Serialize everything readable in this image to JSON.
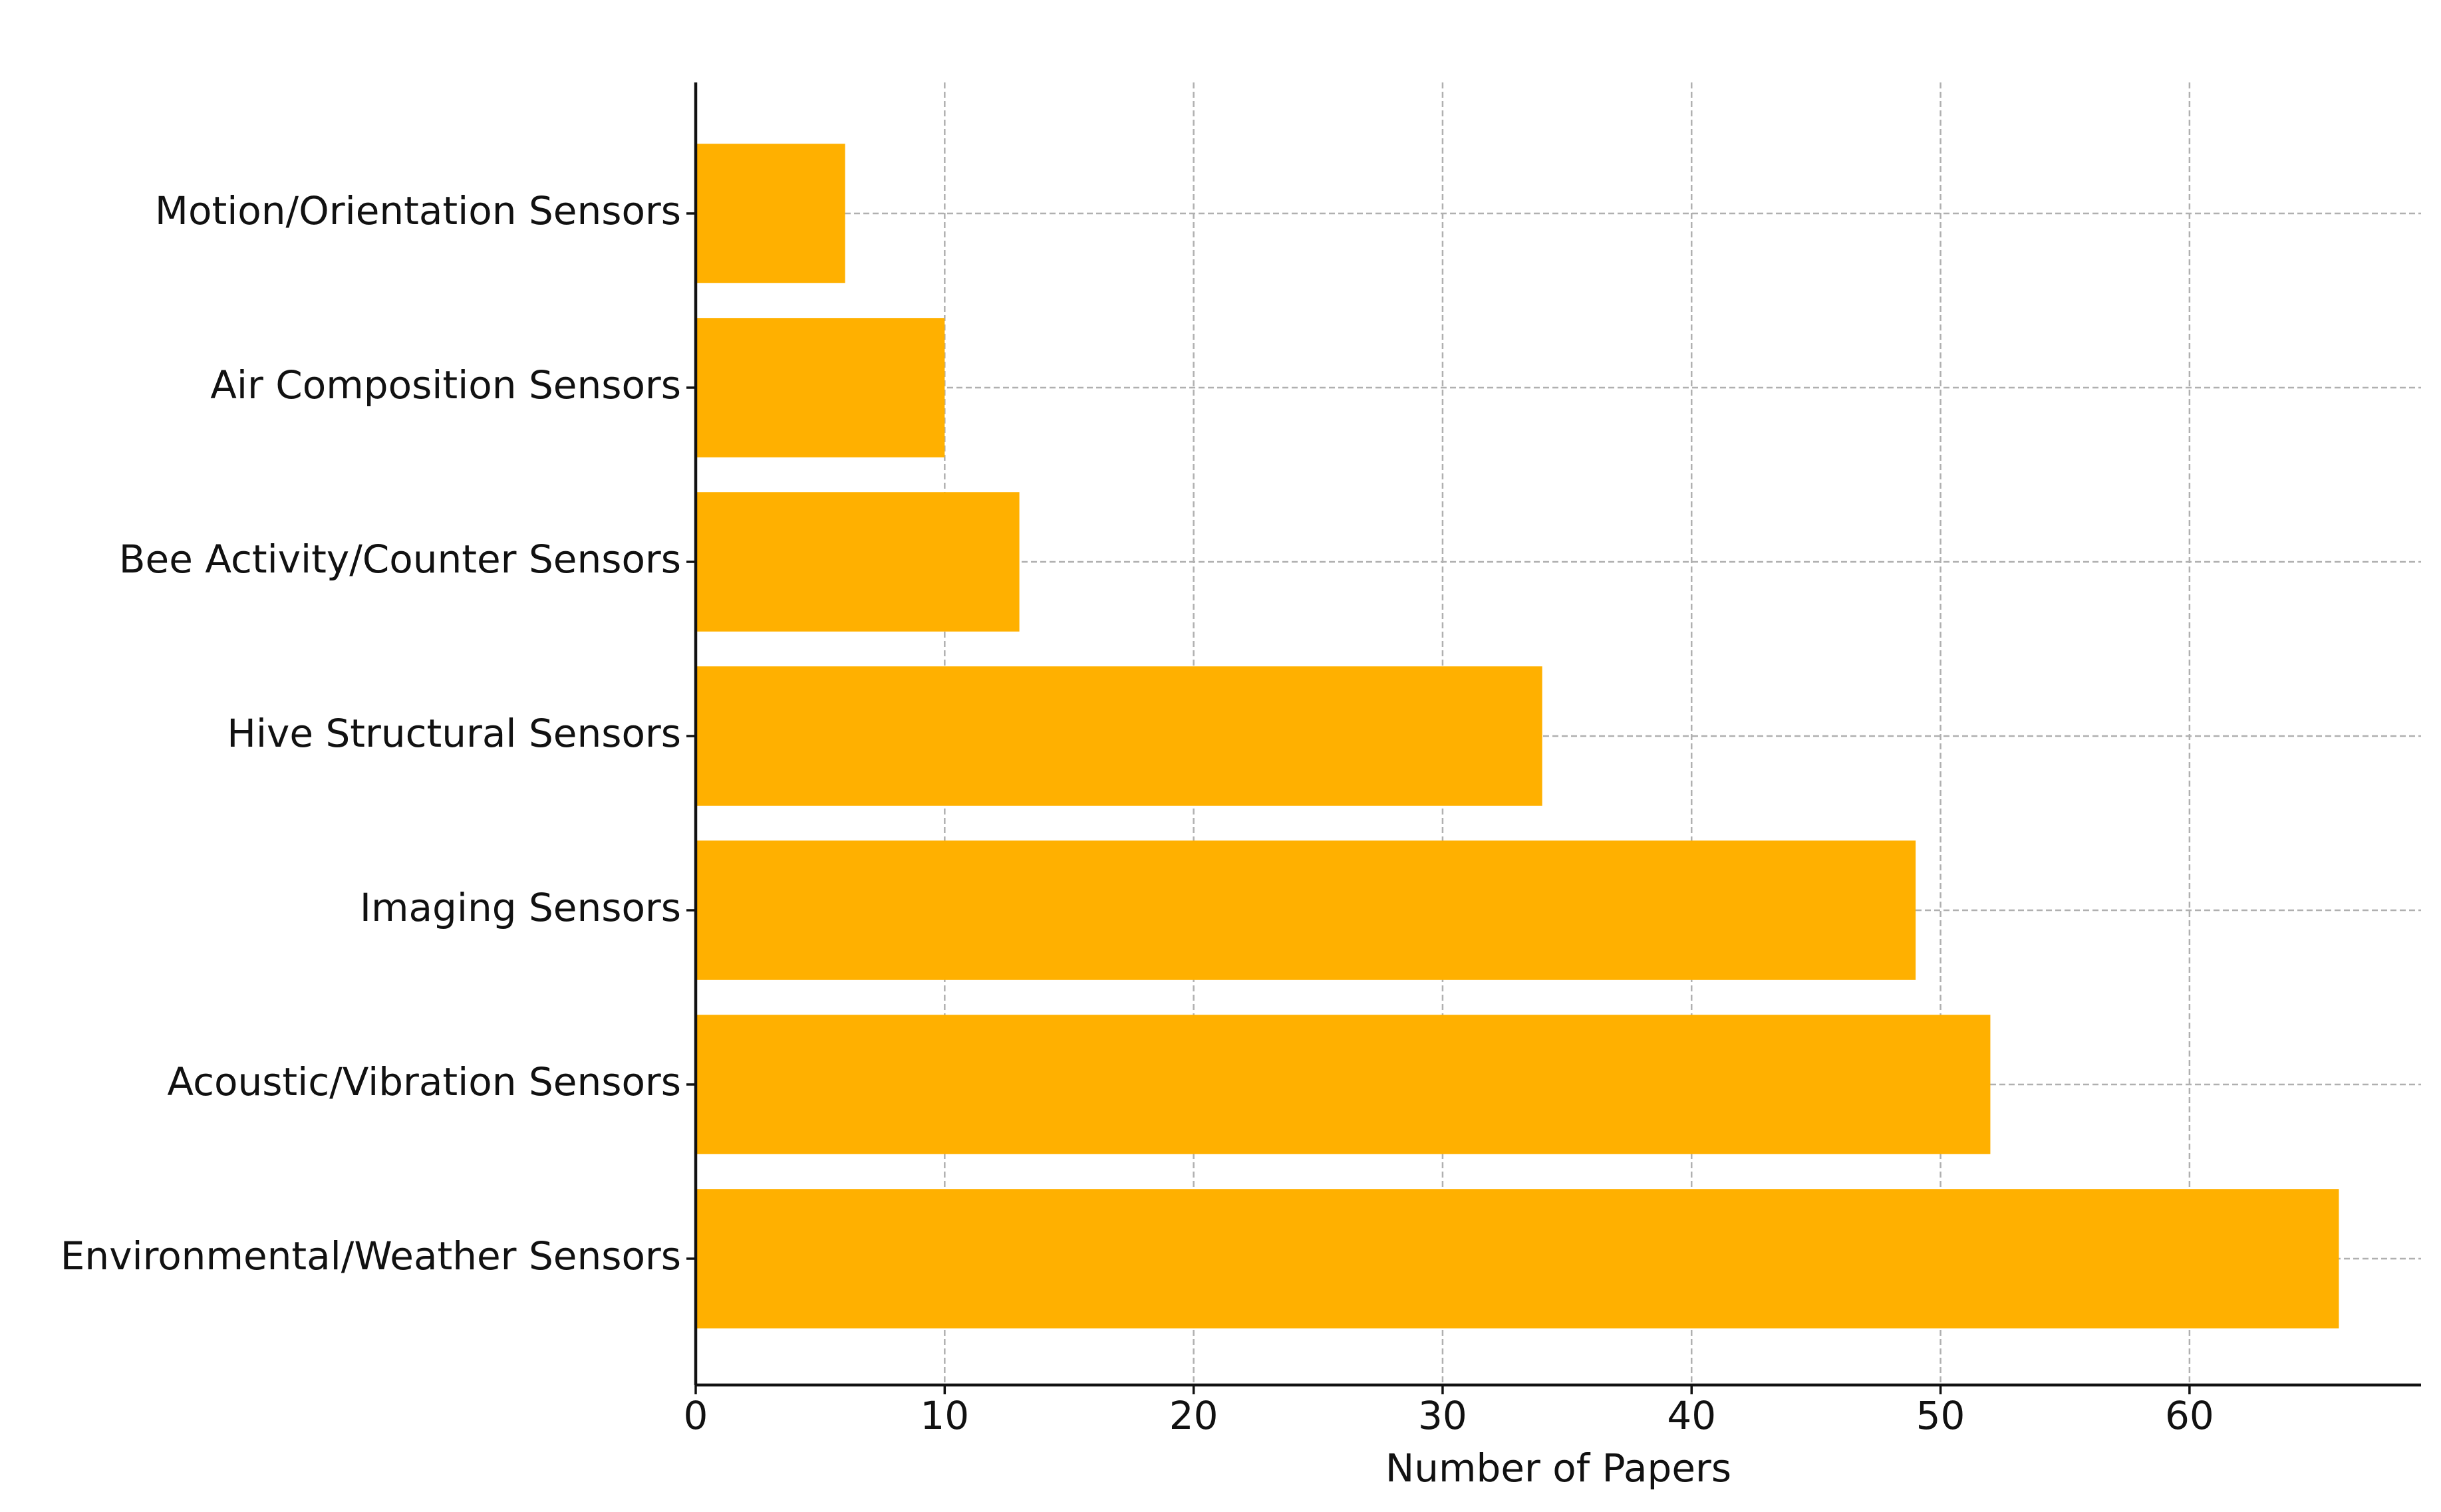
{
  "chart_data": {
    "type": "barh",
    "categories": [
      "Motion/Orientation Sensors",
      "Air Composition Sensors",
      "Bee Activity/Counter Sensors",
      "Hive Structural Sensors",
      "Imaging Sensors",
      "Acoustic/Vibration Sensors",
      "Environmental/Weather Sensors"
    ],
    "values": [
      6,
      10,
      13,
      34,
      49,
      52,
      66
    ],
    "color": "#ffb000",
    "x_label": "Number of Papers",
    "xlim": [
      0,
      69.3
    ],
    "xticks": [
      0,
      10,
      20,
      30,
      40,
      50,
      60
    ],
    "grid": true
  }
}
